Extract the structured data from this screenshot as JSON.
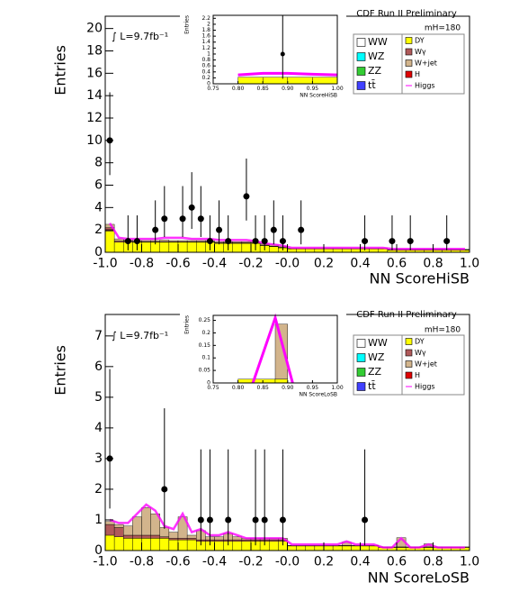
{
  "chart_data": [
    {
      "type": "histogram",
      "title": "CDF Run II Preliminary",
      "annotation": "mH=180",
      "luminosity": "∫ L=9.7fb⁻¹",
      "x_label": "NN ScoreHiSB",
      "y_label": "Entries",
      "xlim": [
        -1.0,
        1.0
      ],
      "ylim": [
        0,
        21.1
      ],
      "xticks": [
        {
          "value": -1.0,
          "label": "-1.0"
        },
        -0.8,
        -0.6,
        -0.4,
        -0.2,
        {
          "value": 0,
          "label": "-0.0"
        },
        0.2,
        0.4,
        0.6,
        0.8,
        {
          "value": 1.0,
          "label": "1.0"
        }
      ],
      "yticks": [
        0,
        2,
        4,
        6,
        8,
        10,
        12,
        14,
        16,
        18,
        20
      ],
      "bins": [
        -1.0,
        -0.95,
        -0.9,
        -0.85,
        -0.8,
        -0.75,
        -0.7,
        -0.65,
        -0.6,
        -0.55,
        -0.5,
        -0.45,
        -0.4,
        -0.35,
        -0.3,
        -0.25,
        -0.2,
        -0.15,
        -0.1,
        -0.05,
        0,
        0.05,
        0.1,
        0.15,
        0.2,
        0.25,
        0.3,
        0.35,
        0.4,
        0.45,
        0.5,
        0.55,
        0.6,
        0.65,
        0.7,
        0.75,
        0.8,
        0.85,
        0.9,
        0.95,
        1.0
      ],
      "series": [
        {
          "name": "WW",
          "color": "#ffffff"
        },
        {
          "name": "WZ",
          "color": "#00ffff"
        },
        {
          "name": "ZZ",
          "color": "#33cc33"
        },
        {
          "name": "tt̄",
          "color": "#4040ff"
        },
        {
          "name": "DY",
          "color": "#ffff00",
          "values": [
            1.9,
            0.9,
            0.9,
            0.9,
            0.9,
            0.9,
            0.9,
            0.9,
            0.9,
            0.9,
            0.9,
            0.9,
            0.8,
            0.8,
            0.8,
            0.8,
            0.8,
            0.6,
            0.5,
            0.4,
            0.3,
            0.3,
            0.3,
            0.3,
            0.3,
            0.3,
            0.3,
            0.3,
            0.3,
            0.3,
            0.3,
            0.2,
            0.2,
            0.2,
            0.2,
            0.2,
            0.2,
            0.2,
            0.2,
            0.2
          ]
        },
        {
          "name": "Wγ",
          "color": "#b05a5a",
          "values": [
            0.3,
            0.1,
            0.1,
            0.05,
            0.05,
            0.05,
            0.05,
            0.05,
            0.05,
            0.05,
            0.05,
            0.05,
            0.05,
            0.05,
            0.05,
            0.05,
            0.05,
            0.05,
            0.05,
            0.05,
            0.02,
            0.02,
            0.02,
            0.02,
            0.02,
            0.02,
            0.02,
            0.02,
            0.02,
            0.02,
            0.02,
            0.02,
            0.02,
            0.02,
            0.02,
            0.02,
            0.02,
            0.02,
            0.02,
            0.02
          ]
        },
        {
          "name": "W+jet",
          "color": "#d2b48c",
          "values": [
            0.3,
            0.2,
            0.1,
            0.1,
            0.1,
            0.1,
            0.15,
            0.1,
            0.1,
            0.1,
            0.1,
            0.1,
            0.1,
            0.1,
            0.1,
            0.1,
            0.1,
            0.1,
            0.1,
            0.1,
            0.05,
            0.05,
            0.05,
            0.05,
            0.05,
            0.05,
            0.05,
            0.05,
            0.05,
            0.05,
            0.05,
            0.05,
            0.05,
            0.05,
            0.05,
            0.05,
            0.05,
            0.05,
            0.05,
            0.05
          ]
        },
        {
          "name": "H",
          "color": "#e00000"
        },
        {
          "name": "Higgs",
          "color": "#ff00ff",
          "style": "line",
          "values": [
            2.6,
            1.3,
            1.2,
            1.2,
            1.2,
            1.2,
            1.3,
            1.3,
            1.3,
            1.2,
            1.2,
            1.2,
            1.1,
            1.1,
            1.1,
            1.1,
            1.0,
            0.8,
            0.7,
            0.6,
            0.4,
            0.4,
            0.4,
            0.4,
            0.4,
            0.4,
            0.4,
            0.4,
            0.4,
            0.4,
            0.4,
            0.3,
            0.3,
            0.3,
            0.3,
            0.3,
            0.3,
            0.3,
            0.3,
            0.3
          ]
        }
      ],
      "data_points": {
        "x": [
          -0.975,
          -0.875,
          -0.825,
          -0.725,
          -0.675,
          -0.575,
          -0.525,
          -0.475,
          -0.425,
          -0.375,
          -0.325,
          -0.225,
          -0.175,
          -0.125,
          -0.075,
          -0.025,
          0.075,
          0.425,
          0.575,
          0.675,
          0.875
        ],
        "values": [
          10,
          1,
          1,
          2,
          3,
          3,
          4,
          3,
          1,
          2,
          1,
          5,
          1,
          1,
          2,
          1,
          2,
          1,
          1,
          1,
          1
        ],
        "err_low": [
          3.1,
          0.83,
          0.83,
          1.29,
          1.63,
          1.63,
          1.91,
          1.63,
          0.83,
          1.29,
          0.83,
          2.16,
          0.83,
          0.83,
          1.29,
          0.83,
          1.29,
          0.83,
          0.83,
          0.83,
          0.83
        ],
        "err_high": [
          4.3,
          2.3,
          2.3,
          2.64,
          2.92,
          2.92,
          3.16,
          2.92,
          2.3,
          2.64,
          2.3,
          3.38,
          2.3,
          2.3,
          2.64,
          2.3,
          2.64,
          2.3,
          2.3,
          2.3,
          2.3
        ]
      },
      "inset": {
        "x_label": "NN ScoreHiSB",
        "y_label": "Entries",
        "xlim": [
          0.75,
          1.0
        ],
        "ylim": [
          0,
          2.3
        ],
        "xticks": [
          0.75,
          {
            "value": 0.8,
            "label": "0.80"
          },
          0.85,
          {
            "value": 0.9,
            "label": "0.90"
          },
          0.95,
          {
            "value": 1.0,
            "label": "1.00"
          }
        ],
        "yticks": [
          0,
          0.2,
          0.4,
          0.6,
          0.8,
          1,
          1.2,
          1.4,
          1.6,
          1.8,
          2,
          2.2
        ],
        "bins": [
          0.75,
          0.8,
          0.85,
          0.9,
          0.95,
          1.0
        ],
        "series": [
          {
            "color": "#ffff00",
            "values": [
              0,
              0.22,
              0.22,
              0.22,
              0.22
            ]
          }
        ],
        "signal": {
          "color": "#ff00ff",
          "x": [
            0.8,
            0.85,
            0.9,
            0.95,
            1.0
          ],
          "values": [
            0.3,
            0.35,
            0.35,
            0.32,
            0.3
          ]
        },
        "data_points": {
          "x": [
            0.89
          ],
          "values": [
            1
          ],
          "err_low": [
            0.83
          ],
          "err_high": [
            2.3
          ]
        }
      }
    },
    {
      "type": "histogram",
      "title": "CDF Run II Preliminary",
      "annotation": "mH=180",
      "luminosity": "∫ L=9.7fb⁻¹",
      "x_label": "NN ScoreLoSB",
      "y_label": "Entries",
      "xlim": [
        -1.0,
        1.0
      ],
      "ylim": [
        0,
        7.7
      ],
      "xticks": [
        {
          "value": -1.0,
          "label": "-1.0"
        },
        -0.8,
        -0.6,
        -0.4,
        -0.2,
        {
          "value": 0,
          "label": "-0.0"
        },
        0.2,
        0.4,
        0.6,
        0.8,
        {
          "value": 1.0,
          "label": "1.0"
        }
      ],
      "yticks": [
        0,
        1,
        2,
        3,
        4,
        5,
        6,
        7
      ],
      "bins": [
        -1.0,
        -0.95,
        -0.9,
        -0.85,
        -0.8,
        -0.75,
        -0.7,
        -0.65,
        -0.6,
        -0.55,
        -0.5,
        -0.45,
        -0.4,
        -0.35,
        -0.3,
        -0.25,
        -0.2,
        -0.15,
        -0.1,
        -0.05,
        0,
        0.05,
        0.1,
        0.15,
        0.2,
        0.25,
        0.3,
        0.35,
        0.4,
        0.45,
        0.5,
        0.55,
        0.6,
        0.65,
        0.7,
        0.75,
        0.8,
        0.85,
        0.9,
        0.95,
        1.0
      ],
      "series": [
        {
          "name": "WW",
          "color": "#ffffff"
        },
        {
          "name": "WZ",
          "color": "#00ffff"
        },
        {
          "name": "ZZ",
          "color": "#33cc33"
        },
        {
          "name": "tt̄",
          "color": "#4040ff"
        },
        {
          "name": "DY",
          "color": "#ffff00",
          "values": [
            0.5,
            0.45,
            0.4,
            0.4,
            0.4,
            0.4,
            0.4,
            0.35,
            0.35,
            0.35,
            0.3,
            0.3,
            0.3,
            0.3,
            0.3,
            0.3,
            0.3,
            0.3,
            0.3,
            0.3,
            0.15,
            0.15,
            0.15,
            0.15,
            0.15,
            0.15,
            0.15,
            0.15,
            0.15,
            0.15,
            0.1,
            0.1,
            0.1,
            0.1,
            0.1,
            0.1,
            0.1,
            0.1,
            0.1,
            0.1
          ]
        },
        {
          "name": "Wγ",
          "color": "#b05a5a",
          "values": [
            0.35,
            0.3,
            0.1,
            0.1,
            0.1,
            0.1,
            0.05,
            0.05,
            0.05,
            0.05,
            0.05,
            0.05,
            0.05,
            0.05,
            0.05,
            0.05,
            0.05,
            0.05,
            0.05,
            0.05,
            0.02,
            0.02,
            0.02,
            0.02,
            0.02,
            0.02,
            0.02,
            0.02,
            0.02,
            0.02,
            0.02,
            0.02,
            0.02,
            0.02,
            0.02,
            0.02,
            0.02,
            0.02,
            0.02,
            0.02
          ]
        },
        {
          "name": "W+jet",
          "color": "#d2b48c",
          "values": [
            0.1,
            0.1,
            0.3,
            0.6,
            0.9,
            0.7,
            0.3,
            0.2,
            0.7,
            0.1,
            0.3,
            0.1,
            0.1,
            0.2,
            0.1,
            0.05,
            0.05,
            0.05,
            0.05,
            0.05,
            0,
            0,
            0,
            0,
            0,
            0,
            0.1,
            0,
            0,
            0,
            0,
            0,
            0.3,
            0,
            0,
            0.1,
            0,
            0,
            0,
            0
          ]
        },
        {
          "name": "H",
          "color": "#e00000"
        },
        {
          "name": "Higgs",
          "color": "#ff00ff",
          "style": "line",
          "values": [
            1.0,
            0.9,
            0.9,
            1.2,
            1.5,
            1.3,
            0.8,
            0.7,
            1.2,
            0.6,
            0.7,
            0.5,
            0.5,
            0.6,
            0.5,
            0.4,
            0.4,
            0.4,
            0.4,
            0.4,
            0.2,
            0.2,
            0.2,
            0.2,
            0.2,
            0.2,
            0.3,
            0.2,
            0.2,
            0.2,
            0.1,
            0.1,
            0.4,
            0.1,
            0.1,
            0.2,
            0.1,
            0.1,
            0.1,
            0.1
          ]
        }
      ],
      "data_points": {
        "x": [
          -0.975,
          -0.675,
          -0.475,
          -0.425,
          -0.325,
          -0.175,
          -0.125,
          -0.025,
          0.425
        ],
        "values": [
          3,
          2,
          1,
          1,
          1,
          1,
          1,
          1,
          1
        ],
        "err_low": [
          1.63,
          1.29,
          0.83,
          0.83,
          0.83,
          0.83,
          0.83,
          0.83,
          0.83
        ],
        "err_high": [
          2.92,
          2.64,
          2.3,
          2.3,
          2.3,
          2.3,
          2.3,
          2.3,
          2.3
        ]
      },
      "inset": {
        "x_label": "NN ScoreLoSB",
        "y_label": "Entries",
        "xlim": [
          0.75,
          1.0
        ],
        "ylim": [
          0,
          0.27
        ],
        "xticks": [
          0.75,
          {
            "value": 0.8,
            "label": "0.80"
          },
          0.85,
          {
            "value": 0.9,
            "label": "0.90"
          },
          0.95,
          {
            "value": 1.0,
            "label": "1.00"
          }
        ],
        "yticks": [
          0,
          0.05,
          0.1,
          0.15,
          0.2,
          0.25
        ],
        "bins": [
          0.75,
          0.8,
          0.875,
          0.9,
          1.0
        ],
        "series": [
          {
            "color": "#ffff00",
            "values": [
              0,
              0.015,
              0.015,
              0
            ]
          },
          {
            "color": "#d2b48c",
            "values": [
              0,
              0,
              0.22,
              0
            ]
          }
        ],
        "signal": {
          "color": "#ff00ff",
          "x": [
            0.83,
            0.875,
            0.91
          ],
          "values": [
            0,
            0.26,
            0
          ]
        }
      }
    }
  ]
}
